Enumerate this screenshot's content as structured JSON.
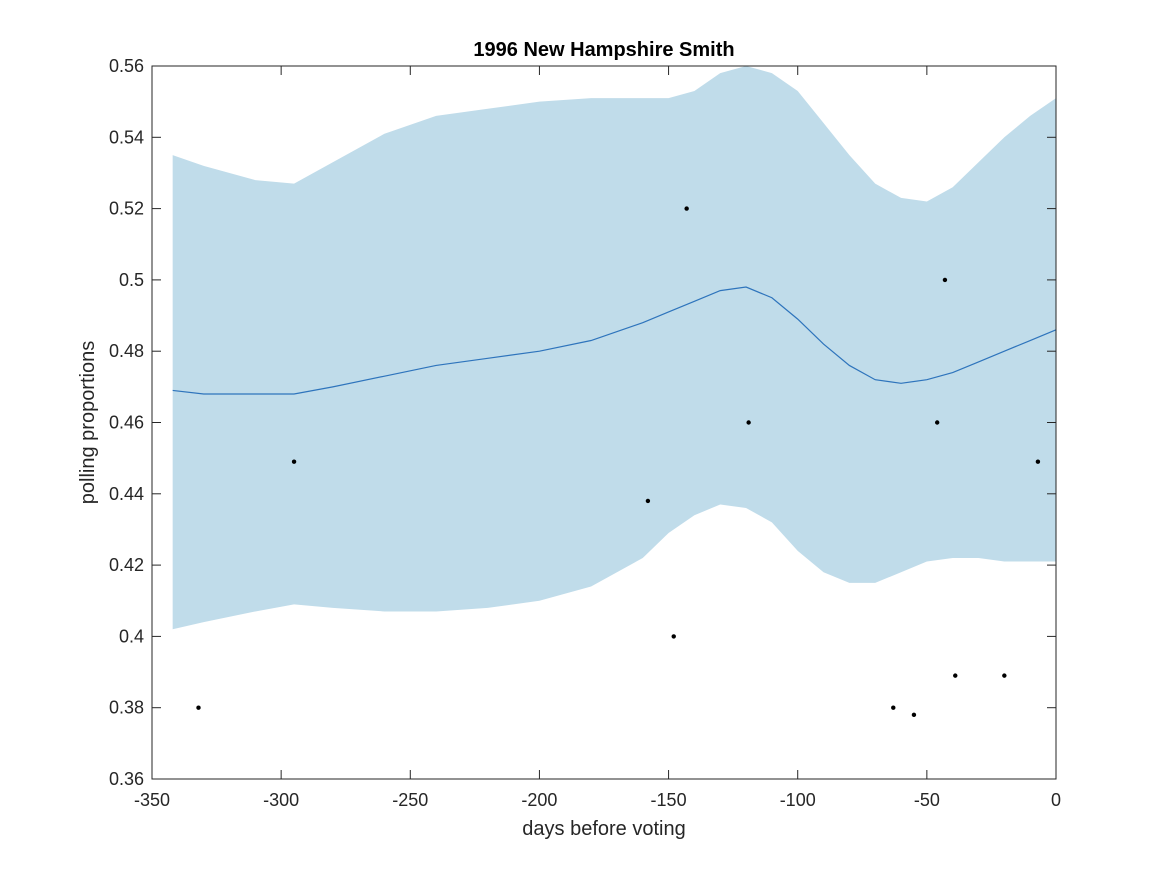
{
  "chart_data": {
    "type": "line",
    "title": "1996 New Hampshire Smith",
    "xlabel": "days before voting",
    "ylabel": "polling proportions",
    "xlim": [
      -350,
      0
    ],
    "ylim": [
      0.36,
      0.56
    ],
    "xticks": [
      -350,
      -300,
      -250,
      -200,
      -150,
      -100,
      -50,
      0
    ],
    "yticks": [
      0.36,
      0.38,
      0.4,
      0.42,
      0.44,
      0.46,
      0.48,
      0.5,
      0.52,
      0.54,
      0.56
    ],
    "xtick_labels": [
      "-350",
      "-300",
      "-250",
      "-200",
      "-150",
      "-100",
      "-50",
      "0"
    ],
    "ytick_labels": [
      "0.36",
      "0.38",
      "0.4",
      "0.42",
      "0.44",
      "0.46",
      "0.48",
      "0.5",
      "0.52",
      "0.54",
      "0.56"
    ],
    "grid": false,
    "band": {
      "x": [
        -342,
        -330,
        -310,
        -295,
        -280,
        -260,
        -240,
        -220,
        -200,
        -180,
        -160,
        -150,
        -140,
        -130,
        -120,
        -110,
        -100,
        -90,
        -80,
        -70,
        -60,
        -50,
        -40,
        -30,
        -20,
        -10,
        0
      ],
      "upper": [
        0.535,
        0.532,
        0.528,
        0.527,
        0.533,
        0.541,
        0.546,
        0.548,
        0.55,
        0.551,
        0.551,
        0.551,
        0.553,
        0.558,
        0.56,
        0.558,
        0.553,
        0.544,
        0.535,
        0.527,
        0.523,
        0.522,
        0.526,
        0.533,
        0.54,
        0.546,
        0.551
      ],
      "lower": [
        0.402,
        0.404,
        0.407,
        0.409,
        0.408,
        0.407,
        0.407,
        0.408,
        0.41,
        0.414,
        0.422,
        0.429,
        0.434,
        0.437,
        0.436,
        0.432,
        0.424,
        0.418,
        0.415,
        0.415,
        0.418,
        0.421,
        0.422,
        0.422,
        0.421,
        0.421,
        0.421
      ],
      "color": "#c0dcea"
    },
    "mean": {
      "x": [
        -342,
        -330,
        -310,
        -295,
        -280,
        -260,
        -240,
        -220,
        -200,
        -180,
        -160,
        -150,
        -140,
        -130,
        -120,
        -110,
        -100,
        -90,
        -80,
        -70,
        -60,
        -50,
        -40,
        -30,
        -20,
        -10,
        0
      ],
      "y": [
        0.469,
        0.468,
        0.468,
        0.468,
        0.47,
        0.473,
        0.476,
        0.478,
        0.48,
        0.483,
        0.488,
        0.491,
        0.494,
        0.497,
        0.498,
        0.495,
        0.489,
        0.482,
        0.476,
        0.472,
        0.471,
        0.472,
        0.474,
        0.477,
        0.48,
        0.483,
        0.486
      ],
      "color": "#2e74bc"
    },
    "points": {
      "x": [
        -332,
        -295,
        -158,
        -148,
        -143,
        -119,
        -63,
        -55,
        -46,
        -43,
        -39,
        -20,
        -7
      ],
      "y": [
        0.38,
        0.449,
        0.438,
        0.4,
        0.52,
        0.46,
        0.38,
        0.378,
        0.46,
        0.5,
        0.389,
        0.389,
        0.449
      ],
      "color": "#000000"
    }
  }
}
